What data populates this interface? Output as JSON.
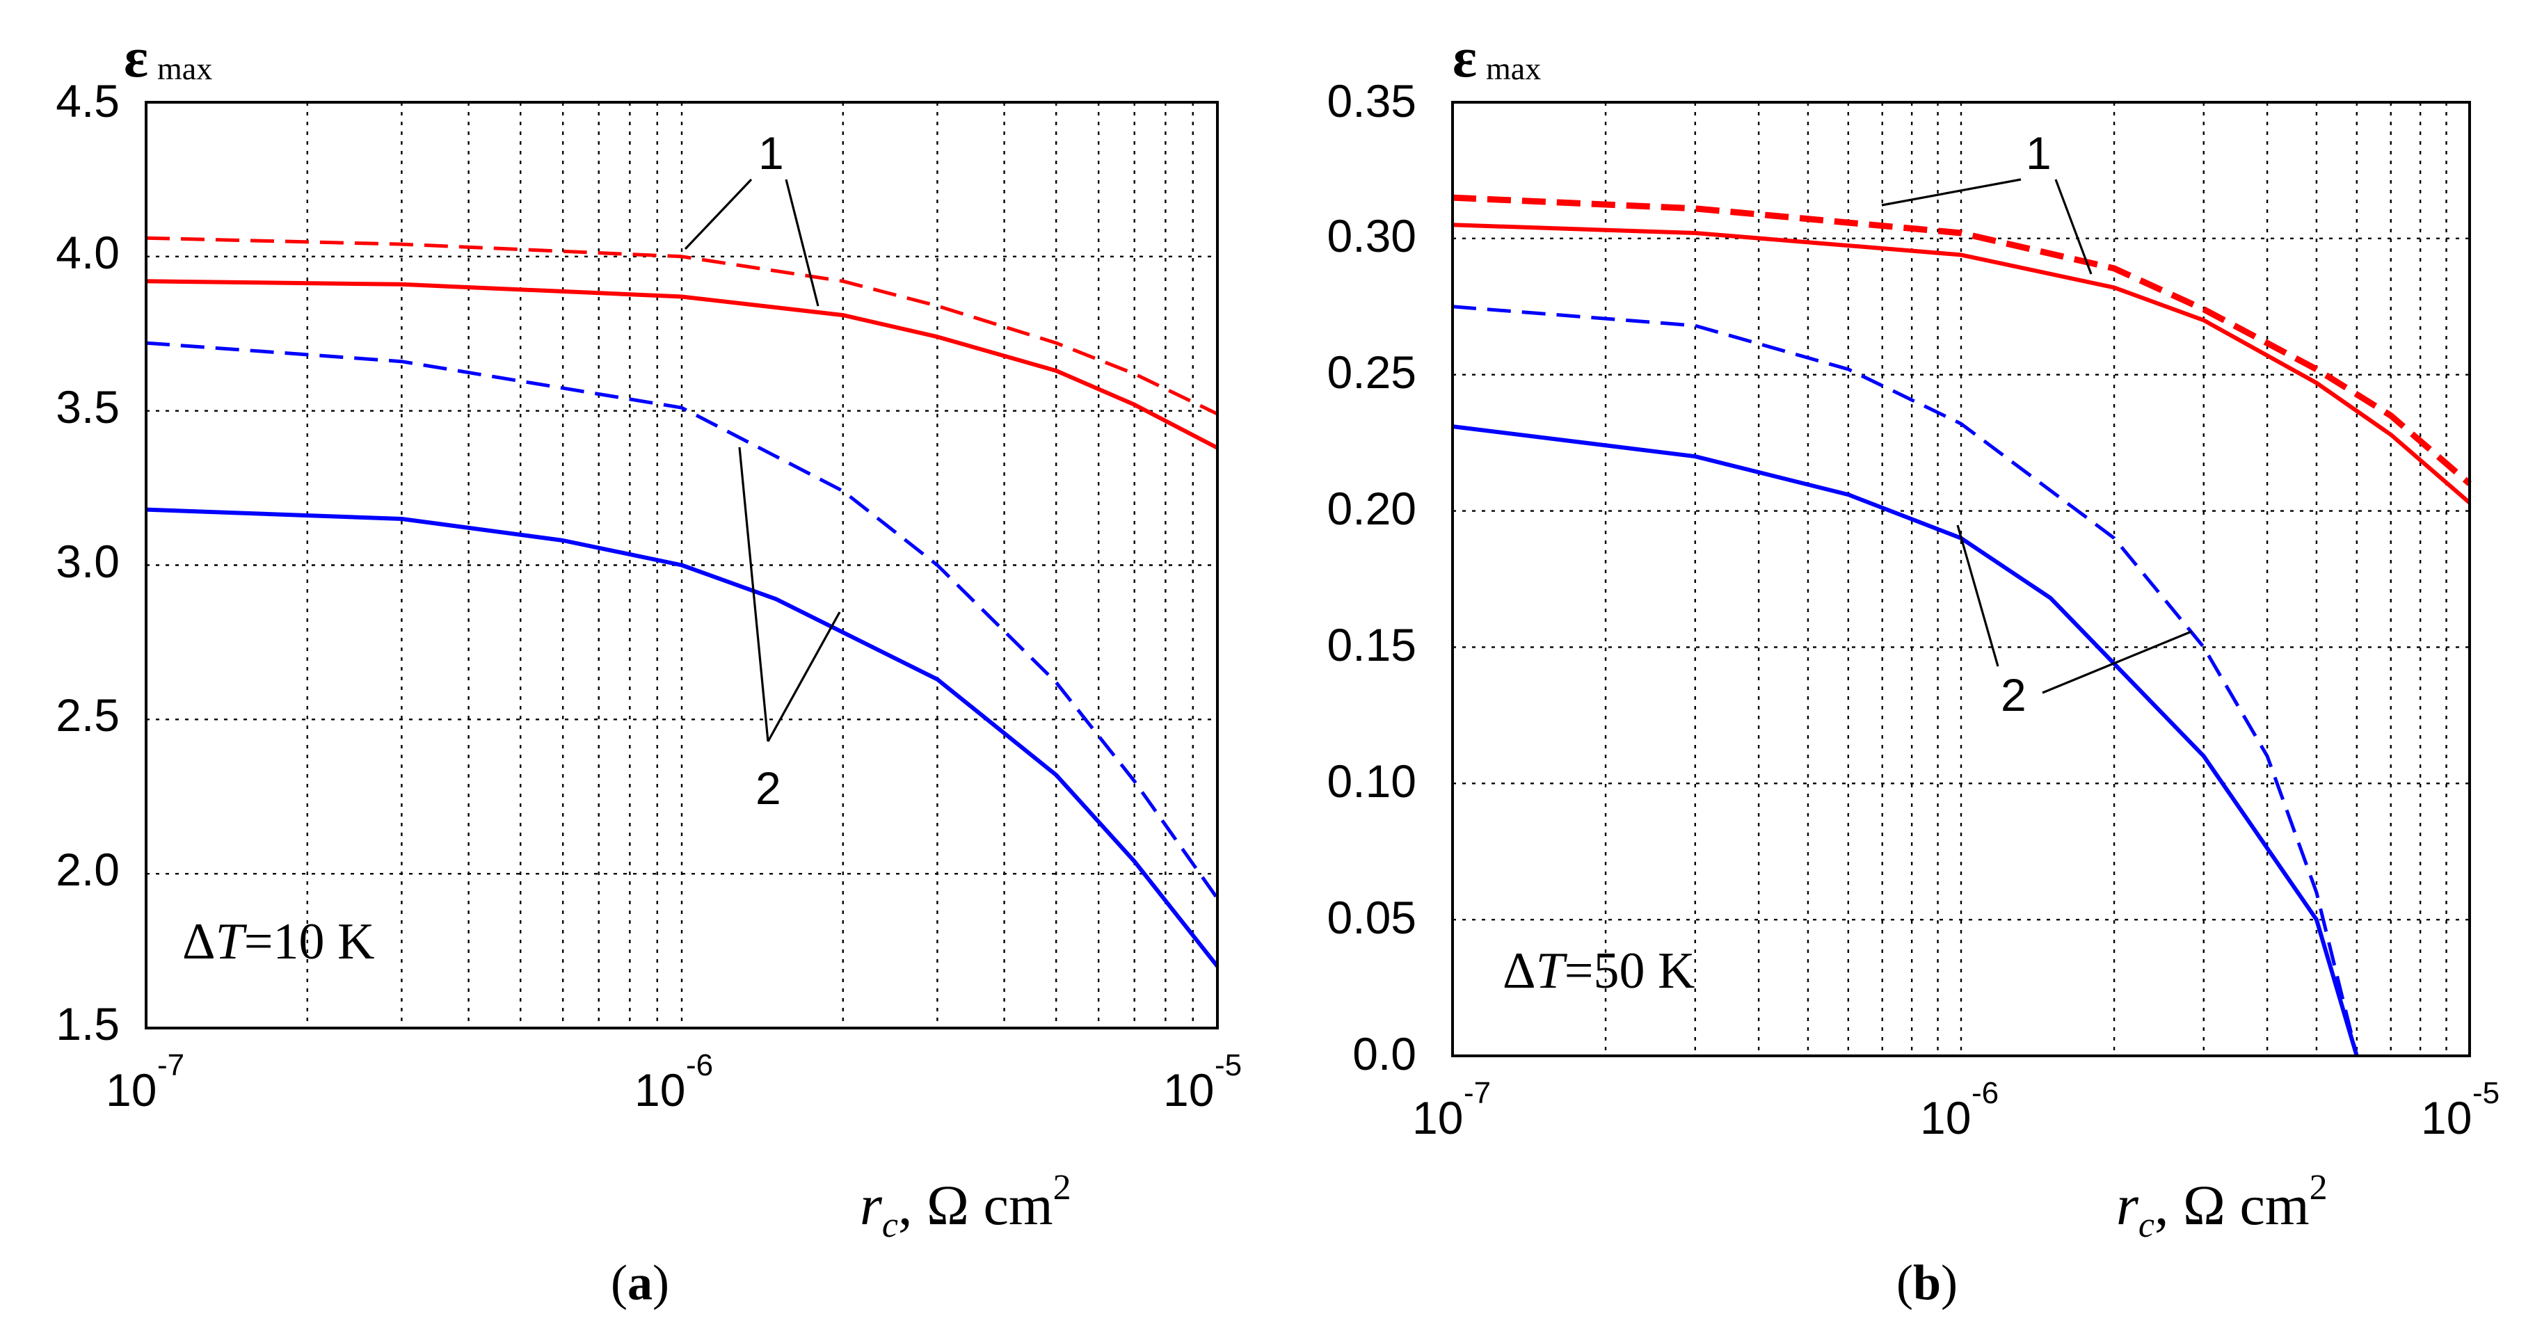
{
  "chart_data": [
    {
      "type": "line",
      "panel_label": "a",
      "x_scale": "log",
      "x_ticks": [
        {
          "value": 1e-07,
          "base": "10",
          "exp": "-7"
        },
        {
          "value": 1e-06,
          "base": "10",
          "exp": "-6"
        },
        {
          "value": 1e-05,
          "base": "10",
          "exp": "-5"
        }
      ],
      "xlim": [
        1e-07,
        1e-05
      ],
      "ylim": [
        1.5,
        4.5
      ],
      "y_ticks": [
        "1.5",
        "2.0",
        "2.5",
        "3.0",
        "3.5",
        "4.0",
        "4.5"
      ],
      "ylabel": {
        "symbol": "ε",
        "subscript": "max"
      },
      "xlabel": {
        "symbol": "r",
        "subscript": "c",
        "unit": ", Ω cm",
        "unit_exp": "2"
      },
      "annotation": {
        "delta": "Δ",
        "var": "T",
        "text": "=10 K"
      },
      "curve_labels": [
        {
          "label": "1",
          "target": "red curves"
        },
        {
          "label": "2",
          "target": "blue curves"
        }
      ],
      "grid": true,
      "series": [
        {
          "name": "1 (dashed)",
          "color": "#ff0000",
          "dash": true,
          "width": 5,
          "x": [
            1e-07,
            3e-07,
            1e-06,
            2e-06,
            3e-06,
            5e-06,
            7e-06,
            1e-05
          ],
          "y": [
            4.06,
            4.04,
            4.0,
            3.92,
            3.84,
            3.72,
            3.62,
            3.49
          ]
        },
        {
          "name": "1 (solid)",
          "color": "#ff0000",
          "dash": false,
          "width": 6,
          "x": [
            1e-07,
            3e-07,
            1e-06,
            2e-06,
            3e-06,
            5e-06,
            7e-06,
            1e-05
          ],
          "y": [
            3.92,
            3.91,
            3.87,
            3.81,
            3.74,
            3.63,
            3.52,
            3.38
          ]
        },
        {
          "name": "2 (dashed)",
          "color": "#0000ff",
          "dash": true,
          "width": 5,
          "x": [
            1e-07,
            3e-07,
            1e-06,
            2e-06,
            3e-06,
            5e-06,
            7e-06,
            1e-05
          ],
          "y": [
            3.72,
            3.66,
            3.51,
            3.24,
            3.0,
            2.62,
            2.3,
            1.92
          ]
        },
        {
          "name": "2 (solid)",
          "color": "#0000ff",
          "dash": false,
          "width": 6,
          "x": [
            1e-07,
            3e-07,
            6e-07,
            1e-06,
            1.5e-06,
            3e-06,
            5e-06,
            7e-06,
            1e-05
          ],
          "y": [
            3.18,
            3.15,
            3.08,
            3.0,
            2.89,
            2.63,
            2.32,
            2.04,
            1.7
          ]
        }
      ]
    },
    {
      "type": "line",
      "panel_label": "b",
      "x_scale": "log",
      "x_ticks": [
        {
          "value": 1e-07,
          "base": "10",
          "exp": "-7"
        },
        {
          "value": 1e-06,
          "base": "10",
          "exp": "-6"
        },
        {
          "value": 1e-05,
          "base": "10",
          "exp": "-5"
        }
      ],
      "xlim": [
        1e-07,
        1e-05
      ],
      "ylim": [
        0,
        0.35
      ],
      "y_ticks": [
        "0.0",
        "0.05",
        "0.10",
        "0.15",
        "0.20",
        "0.25",
        "0.30",
        "0.35"
      ],
      "ylabel": {
        "symbol": "ε",
        "subscript": "max"
      },
      "xlabel": {
        "symbol": "r",
        "subscript": "c",
        "unit": ", Ω cm",
        "unit_exp": "2"
      },
      "annotation": {
        "delta": "Δ",
        "var": "T",
        "text": "=50 K"
      },
      "curve_labels": [
        {
          "label": "1",
          "target": "red curves"
        },
        {
          "label": "2",
          "target": "blue curves"
        }
      ],
      "grid": true,
      "series": [
        {
          "name": "1 (dashed)",
          "color": "#ff0000",
          "dash": true,
          "width": 9,
          "x": [
            1e-07,
            3e-07,
            1e-06,
            2e-06,
            3e-06,
            5e-06,
            7e-06,
            1e-05
          ],
          "y": [
            0.315,
            0.311,
            0.302,
            0.289,
            0.274,
            0.252,
            0.235,
            0.21
          ]
        },
        {
          "name": "1 (solid)",
          "color": "#ff0000",
          "dash": false,
          "width": 6,
          "x": [
            1e-07,
            3e-07,
            1e-06,
            2e-06,
            3e-06,
            5e-06,
            7e-06,
            1e-05
          ],
          "y": [
            0.305,
            0.302,
            0.294,
            0.282,
            0.27,
            0.247,
            0.228,
            0.203
          ]
        },
        {
          "name": "2 (dashed)",
          "color": "#0000ff",
          "dash": true,
          "width": 5,
          "x": [
            1e-07,
            3e-07,
            6e-07,
            1e-06,
            2e-06,
            3e-06,
            4e-06,
            5e-06,
            6e-06
          ],
          "y": [
            0.275,
            0.268,
            0.252,
            0.232,
            0.19,
            0.15,
            0.11,
            0.06,
            0.0
          ]
        },
        {
          "name": "2 (solid)",
          "color": "#0000ff",
          "dash": false,
          "width": 6,
          "x": [
            1e-07,
            3e-07,
            6e-07,
            1e-06,
            1.5e-06,
            3e-06,
            5e-06,
            6e-06
          ],
          "y": [
            0.231,
            0.22,
            0.206,
            0.19,
            0.168,
            0.11,
            0.05,
            0.0
          ]
        }
      ]
    }
  ]
}
